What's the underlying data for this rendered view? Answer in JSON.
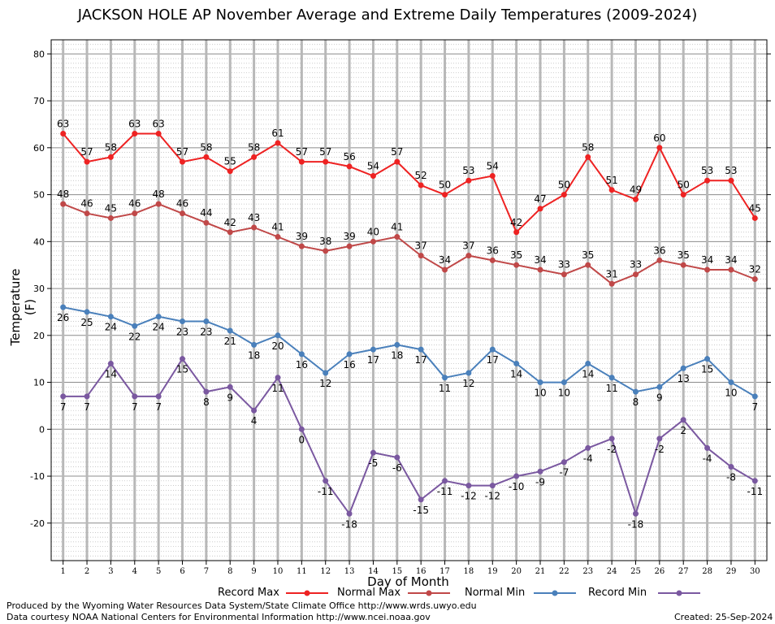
{
  "chart_data": {
    "type": "line",
    "title": "JACKSON HOLE AP November Average and Extreme Daily Temperatures (2009-2024)",
    "xlabel": "Day of Month",
    "ylabel": "Temperature (F)",
    "ylim": [
      -28,
      83
    ],
    "y_ticks": [
      -20,
      -10,
      0,
      10,
      20,
      30,
      40,
      50,
      60,
      70,
      80
    ],
    "grid": true,
    "legend_placement": "bottom",
    "x": [
      1,
      2,
      3,
      4,
      5,
      6,
      7,
      8,
      9,
      10,
      11,
      12,
      13,
      14,
      15,
      16,
      17,
      18,
      19,
      20,
      21,
      22,
      23,
      24,
      25,
      26,
      27,
      28,
      29,
      30
    ],
    "series": [
      {
        "name": "Record Max",
        "color": "#ee2222",
        "values": [
          63,
          57,
          58,
          63,
          63,
          57,
          58,
          55,
          58,
          61,
          57,
          57,
          56,
          54,
          57,
          52,
          50,
          53,
          54,
          42,
          47,
          50,
          58,
          51,
          49,
          60,
          50,
          53,
          53,
          45
        ]
      },
      {
        "name": "Normal Max",
        "color": "#c04848",
        "values": [
          48,
          46,
          45,
          46,
          48,
          46,
          44,
          42,
          43,
          41,
          39,
          38,
          39,
          40,
          41,
          37,
          34,
          37,
          36,
          35,
          34,
          33,
          35,
          31,
          33,
          36,
          35,
          34,
          34,
          32
        ]
      },
      {
        "name": "Normal Min",
        "color": "#4a80bb",
        "values": [
          26,
          25,
          24,
          22,
          24,
          23,
          23,
          21,
          18,
          20,
          16,
          12,
          16,
          17,
          18,
          17,
          11,
          12,
          17,
          14,
          10,
          10,
          14,
          11,
          8,
          9,
          13,
          15,
          10,
          7
        ]
      },
      {
        "name": "Record Min",
        "color": "#7a58a0",
        "values": [
          7,
          7,
          14,
          7,
          7,
          15,
          8,
          9,
          4,
          11,
          0,
          -11,
          -18,
          -5,
          -6,
          -15,
          -11,
          -12,
          -12,
          -10,
          -9,
          -7,
          -4,
          -2,
          -18,
          -2,
          2,
          -4,
          -8,
          -11
        ]
      }
    ]
  },
  "footer": {
    "produced_by": "Produced by the Wyoming Water Resources Data System/State Climate Office http://www.wrds.uwyo.edu",
    "data_courtesy": "Data courtesy NOAA National Centers for Environmental Information http://www.ncei.noaa.gov",
    "created": "Created: 25-Sep-2024"
  }
}
